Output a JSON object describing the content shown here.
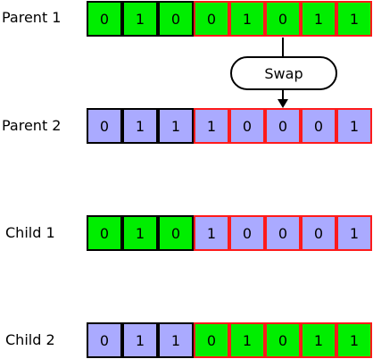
{
  "rows": [
    {
      "label": "Parent 1",
      "bits": [
        "0",
        "1",
        "0",
        "0",
        "1",
        "0",
        "1",
        "1"
      ],
      "colors": [
        "green",
        "green",
        "green",
        "green",
        "green",
        "green",
        "green",
        "green"
      ]
    },
    {
      "label": "Parent 2",
      "bits": [
        "0",
        "1",
        "1",
        "1",
        "0",
        "0",
        "0",
        "1"
      ],
      "colors": [
        "blue",
        "blue",
        "blue",
        "blue",
        "blue",
        "blue",
        "blue",
        "blue"
      ]
    },
    {
      "label": "Child 1",
      "bits": [
        "0",
        "1",
        "0",
        "1",
        "0",
        "0",
        "0",
        "1"
      ],
      "colors": [
        "green",
        "green",
        "green",
        "blue",
        "blue",
        "blue",
        "blue",
        "blue"
      ]
    },
    {
      "label": "Child 2",
      "bits": [
        "0",
        "1",
        "1",
        "0",
        "1",
        "0",
        "1",
        "1"
      ],
      "colors": [
        "blue",
        "blue",
        "blue",
        "green",
        "green",
        "green",
        "green",
        "green"
      ]
    }
  ],
  "swap_label": "Swap",
  "crossover_point": 3,
  "colors": {
    "green": "#00ee00",
    "blue": "#aaaaff",
    "left_border": "#000000",
    "right_border": "#ff1a1a"
  }
}
